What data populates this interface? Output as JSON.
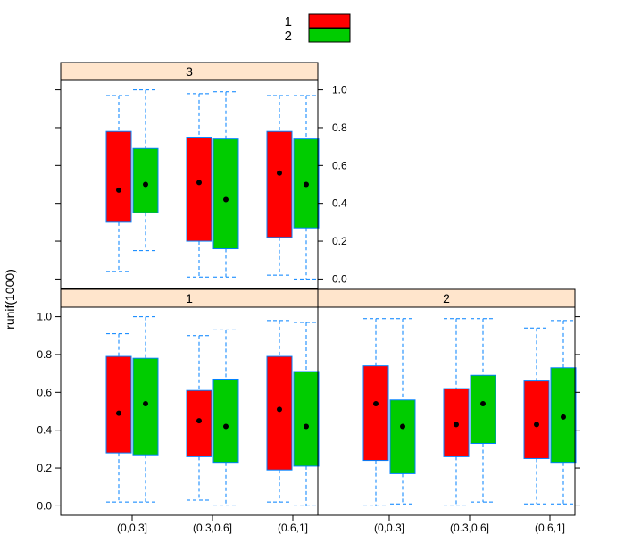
{
  "chart_data": {
    "type": "boxplot",
    "ylabel": "runif(1000)",
    "ylim": [
      -0.05,
      1.05
    ],
    "y_ticks": [
      "0.0",
      "0.2",
      "0.4",
      "0.6",
      "0.8",
      "1.0"
    ],
    "categories": [
      "(0,0.3]",
      "(0.3,0.6]",
      "(0.6,1]"
    ],
    "legend": {
      "position": "top",
      "entries": [
        {
          "label": "1",
          "color": "#ff0000"
        },
        {
          "label": "2",
          "color": "#00cc00"
        }
      ]
    },
    "colors": {
      "strip": "#ffe5cc",
      "whisker": "#0080ff",
      "box_border": "#0080ff",
      "median_dot": "#000000"
    },
    "panels": [
      {
        "strip": "3",
        "groups": [
          {
            "category": "(0,0.3]",
            "series": "1",
            "min": 0.04,
            "q1": 0.3,
            "median": 0.47,
            "q3": 0.78,
            "max": 0.97
          },
          {
            "category": "(0,0.3]",
            "series": "2",
            "min": 0.15,
            "q1": 0.35,
            "median": 0.5,
            "q3": 0.69,
            "max": 1.0
          },
          {
            "category": "(0.3,0.6]",
            "series": "1",
            "min": 0.01,
            "q1": 0.2,
            "median": 0.51,
            "q3": 0.75,
            "max": 0.98
          },
          {
            "category": "(0.3,0.6]",
            "series": "2",
            "min": 0.01,
            "q1": 0.16,
            "median": 0.42,
            "q3": 0.74,
            "max": 0.99
          },
          {
            "category": "(0.6,1]",
            "series": "1",
            "min": 0.02,
            "q1": 0.22,
            "median": 0.56,
            "q3": 0.78,
            "max": 0.97
          },
          {
            "category": "(0.6,1]",
            "series": "2",
            "min": 0.0,
            "q1": 0.27,
            "median": 0.5,
            "q3": 0.74,
            "max": 0.97
          }
        ]
      },
      {
        "strip": "1",
        "groups": [
          {
            "category": "(0,0.3]",
            "series": "1",
            "min": 0.02,
            "q1": 0.28,
            "median": 0.49,
            "q3": 0.79,
            "max": 0.91
          },
          {
            "category": "(0,0.3]",
            "series": "2",
            "min": 0.02,
            "q1": 0.27,
            "median": 0.54,
            "q3": 0.78,
            "max": 1.0
          },
          {
            "category": "(0.3,0.6]",
            "series": "1",
            "min": 0.03,
            "q1": 0.26,
            "median": 0.45,
            "q3": 0.61,
            "max": 0.9
          },
          {
            "category": "(0.3,0.6]",
            "series": "2",
            "min": 0.0,
            "q1": 0.23,
            "median": 0.42,
            "q3": 0.67,
            "max": 0.93
          },
          {
            "category": "(0.6,1]",
            "series": "1",
            "min": 0.02,
            "q1": 0.19,
            "median": 0.51,
            "q3": 0.79,
            "max": 0.98
          },
          {
            "category": "(0.6,1]",
            "series": "2",
            "min": 0.0,
            "q1": 0.21,
            "median": 0.42,
            "q3": 0.71,
            "max": 0.97
          }
        ]
      },
      {
        "strip": "2",
        "groups": [
          {
            "category": "(0,0.3]",
            "series": "1",
            "min": 0.0,
            "q1": 0.24,
            "median": 0.54,
            "q3": 0.74,
            "max": 0.99
          },
          {
            "category": "(0,0.3]",
            "series": "2",
            "min": 0.01,
            "q1": 0.17,
            "median": 0.42,
            "q3": 0.56,
            "max": 0.99
          },
          {
            "category": "(0.3,0.6]",
            "series": "1",
            "min": 0.0,
            "q1": 0.26,
            "median": 0.43,
            "q3": 0.62,
            "max": 0.99
          },
          {
            "category": "(0.3,0.6]",
            "series": "2",
            "min": 0.02,
            "q1": 0.33,
            "median": 0.54,
            "q3": 0.69,
            "max": 0.99
          },
          {
            "category": "(0.6,1]",
            "series": "1",
            "min": 0.01,
            "q1": 0.25,
            "median": 0.43,
            "q3": 0.66,
            "max": 0.94
          },
          {
            "category": "(0.6,1]",
            "series": "2",
            "min": 0.01,
            "q1": 0.23,
            "median": 0.47,
            "q3": 0.73,
            "max": 0.98
          }
        ]
      }
    ]
  }
}
